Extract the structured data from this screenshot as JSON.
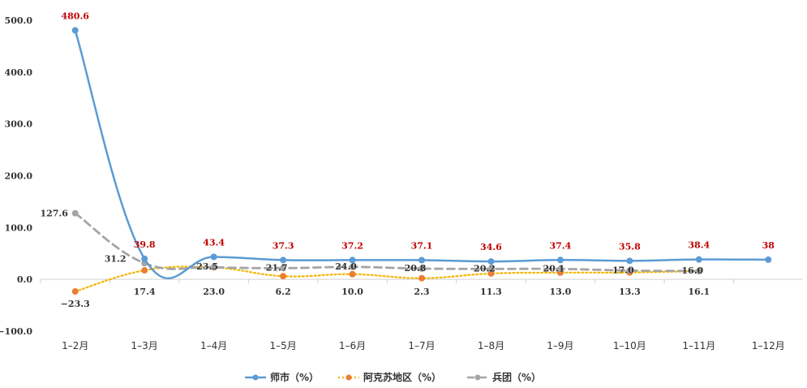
{
  "chart_data": {
    "type": "line",
    "categories": [
      "1–2月",
      "1–3月",
      "1–4月",
      "1–5月",
      "1–6月",
      "1–7月",
      "1–8月",
      "1–9月",
      "1–10月",
      "1–11月",
      "1–12月"
    ],
    "ylim": [
      -100,
      500
    ],
    "yticks": [
      "−100.0",
      "0.0",
      "100.0",
      "200.0",
      "300.0",
      "400.0",
      "500.0"
    ],
    "ytick_values": [
      -100,
      0,
      100,
      200,
      300,
      400,
      500
    ],
    "grid": false,
    "legend_position": "bottom",
    "series": [
      {
        "name": "师市（%）",
        "color": "#5B9BD5",
        "style": "solid",
        "values": [
          480.6,
          39.8,
          43.4,
          37.3,
          37.2,
          37.1,
          34.6,
          37.4,
          35.8,
          38.4,
          38
        ],
        "labels": [
          "480.6",
          "39.8",
          "43.4",
          "37.3",
          "37.2",
          "37.1",
          "34.6",
          "37.4",
          "35.8",
          "38.4",
          "38"
        ],
        "label_color": "#C00000"
      },
      {
        "name": "阿克苏地区（%）",
        "color": "#F2B705",
        "marker_color": "#ED7D31",
        "style": "dotted",
        "values": [
          -23.3,
          17.4,
          23.0,
          6.2,
          10.0,
          2.3,
          11.3,
          13.0,
          13.3,
          16.1,
          null
        ],
        "labels": [
          "−23.3",
          "17.4",
          "23.0",
          "6.2",
          "10.0",
          "2.3",
          "11.3",
          "13.0",
          "13.3",
          "16.1",
          ""
        ],
        "label_color": "#333333"
      },
      {
        "name": "兵团（%）",
        "color": "#A5A5A5",
        "style": "dashed",
        "values": [
          127.6,
          31.2,
          23.5,
          21.7,
          24.0,
          20.8,
          20.2,
          20.1,
          17.0,
          16.0,
          null
        ],
        "labels": [
          "127.6",
          "31.2",
          "23.5",
          "21.7",
          "24.0",
          "20.8",
          "20.2",
          "20.1",
          "17.0",
          "16.0",
          ""
        ],
        "label_color": "#333333"
      }
    ]
  }
}
